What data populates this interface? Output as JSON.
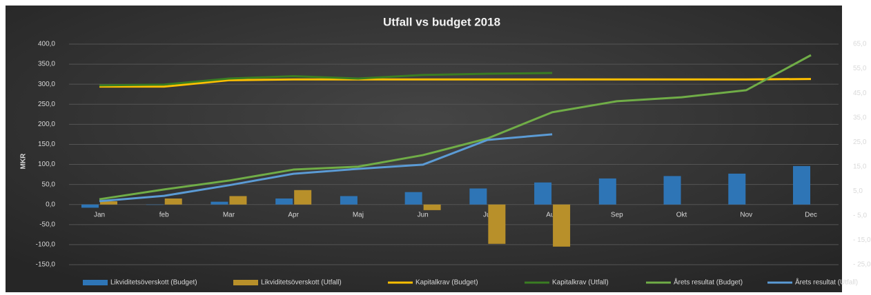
{
  "chart_data": {
    "type": "bar",
    "title": "Utfall vs budget 2018",
    "ylabel": "MKR",
    "categories": [
      "Jan",
      "feb",
      "Mar",
      "Apr",
      "Maj",
      "Jun",
      "Jul",
      "Aug",
      "Sep",
      "Okt",
      "Nov",
      "Dec"
    ],
    "ylim": [
      -150,
      400
    ],
    "yticks": [
      {
        "value": -150,
        "label": "-150,0"
      },
      {
        "value": -100,
        "label": "-100,0"
      },
      {
        "value": -50,
        "label": "-50,0"
      },
      {
        "value": 0,
        "label": "0,0"
      },
      {
        "value": 50,
        "label": "50,0"
      },
      {
        "value": 100,
        "label": "100,0"
      },
      {
        "value": 150,
        "label": "150,0"
      },
      {
        "value": 200,
        "label": "200,0"
      },
      {
        "value": 250,
        "label": "250,0"
      },
      {
        "value": 300,
        "label": "300,0"
      },
      {
        "value": 350,
        "label": "350,0"
      },
      {
        "value": 400,
        "label": "400,0"
      }
    ],
    "y2lim": [
      -25,
      65
    ],
    "y2ticks": [
      {
        "value": -25,
        "label": "- 25,0"
      },
      {
        "value": -15,
        "label": "- 15,0"
      },
      {
        "value": -5,
        "label": "- 5,0"
      },
      {
        "value": 5,
        "label": "5,0"
      },
      {
        "value": 15,
        "label": "15,0"
      },
      {
        "value": 25,
        "label": "25,0"
      },
      {
        "value": 35,
        "label": "35,0"
      },
      {
        "value": 45,
        "label": "45,0"
      },
      {
        "value": 55,
        "label": "55,0"
      },
      {
        "value": 65,
        "label": "65,0"
      }
    ],
    "grid": true,
    "legend": "bottom",
    "series": [
      {
        "name": "Likviditetsöverskott (Budget)",
        "type": "bar",
        "color": "#2e75b6",
        "values": [
          -8,
          0,
          7,
          15,
          21,
          31,
          40,
          55,
          65,
          71,
          77,
          96
        ]
      },
      {
        "name": "Likviditetsöverskott (Utfall)",
        "type": "bar",
        "color": "#b8902a",
        "values": [
          8,
          15,
          21,
          36,
          null,
          -14,
          -98,
          -105,
          null,
          null,
          null,
          null
        ]
      },
      {
        "name": "Kapitalkrav (Budget)",
        "type": "line",
        "color": "#ffc000",
        "values": [
          294,
          294,
          310,
          312,
          312,
          312,
          312,
          312,
          312,
          312,
          312,
          313
        ]
      },
      {
        "name": "Kapitalkrav (Utfall)",
        "type": "line",
        "color": "#3a7d22",
        "values": [
          297,
          299,
          314,
          320,
          314,
          323,
          326,
          328,
          null,
          null,
          null,
          null
        ]
      },
      {
        "name": "Årets resultat (Budget)",
        "type": "line",
        "axis": "y2",
        "color": "#70ad47",
        "values": [
          1.7,
          5.7,
          9.3,
          13.8,
          15,
          19.7,
          26.5,
          37.2,
          41.7,
          43.3,
          46.2,
          60.5
        ]
      },
      {
        "name": "Årets resultat (Utfall)",
        "type": "line",
        "axis": "y2",
        "color": "#5b9bd5",
        "values": [
          0.9,
          3.1,
          7.4,
          12.1,
          14.1,
          15.8,
          25.9,
          28.2,
          null,
          null,
          null,
          null
        ]
      }
    ]
  }
}
